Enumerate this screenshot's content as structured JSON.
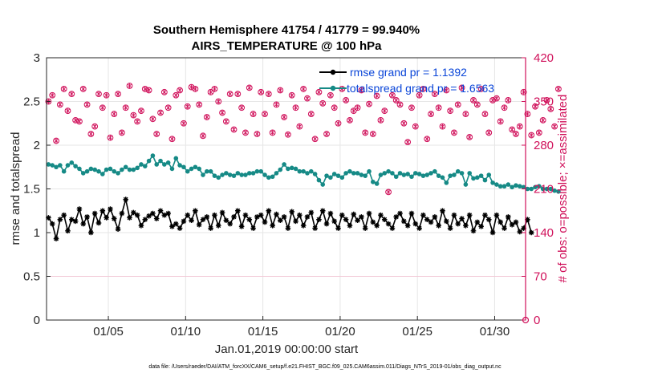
{
  "chart_data": {
    "type": "line",
    "title": "Southern Hemisphere 41754 / 41779 = 99.940%",
    "subtitle": "AIRS_TEMPERATURE @ 100 hPa",
    "xlabel": "Jan.01,2019 00:00:00 start",
    "ylabel_left": "rmse and totalspread",
    "ylabel_right": "# of obs: o=possible; ×=assimilated",
    "footer": "data file: /Users/raeder/DAI/ATM_forcXX/CAM6_setup/f.e21.FHIST_BGC.f09_025.CAM6assim.011/Diags_NTrS_2019-01/obs_diag_output.nc",
    "xlim": [
      1.0,
      32.0
    ],
    "ylim_left": [
      0,
      3
    ],
    "ylim_right": [
      0,
      420
    ],
    "x_ticks": [
      5,
      10,
      15,
      20,
      25,
      30
    ],
    "x_tick_labels": [
      "01/05",
      "01/10",
      "01/15",
      "01/20",
      "01/25",
      "01/30"
    ],
    "y_ticks_left": [
      0,
      0.5,
      1,
      1.5,
      2,
      2.5,
      3
    ],
    "y_tick_labels_left": [
      "0",
      "0.5",
      "1",
      "1.5",
      "2",
      "2.5",
      "3"
    ],
    "y_ticks_right": [
      0,
      70,
      140,
      210,
      280,
      350,
      420
    ],
    "y_tick_labels_right": [
      "0",
      "70",
      "140",
      "210",
      "280",
      "350",
      "420"
    ],
    "grid": true,
    "legend_location": "top-right",
    "colors": {
      "rmse": "#000000",
      "spread": "#168a86",
      "obs": "#d0105a",
      "legend_text": "#0a45d8"
    },
    "series": [
      {
        "name": "rmse grand pr = 1.1392",
        "axis": "left",
        "x_start": 1.125,
        "x_step": 0.25,
        "values": [
          1.17,
          1.1,
          0.93,
          1.15,
          1.2,
          1.02,
          1.15,
          1.13,
          1.27,
          1.1,
          1.18,
          1.0,
          1.22,
          1.11,
          1.25,
          1.17,
          1.27,
          1.16,
          1.04,
          1.22,
          1.38,
          1.17,
          1.23,
          1.2,
          1.08,
          1.15,
          1.19,
          1.22,
          1.16,
          1.25,
          1.2,
          1.22,
          1.07,
          1.1,
          1.05,
          1.13,
          1.2,
          1.14,
          1.25,
          1.09,
          1.15,
          1.18,
          1.05,
          1.2,
          1.08,
          1.23,
          1.14,
          1.1,
          1.18,
          1.25,
          1.07,
          1.2,
          1.15,
          1.05,
          1.18,
          1.2,
          1.12,
          1.25,
          1.08,
          1.21,
          1.14,
          1.18,
          1.05,
          1.24,
          1.13,
          1.2,
          1.08,
          1.18,
          1.23,
          1.05,
          1.15,
          1.25,
          1.1,
          1.22,
          1.13,
          1.05,
          1.2,
          1.15,
          1.08,
          1.21,
          1.14,
          1.18,
          1.05,
          1.22,
          1.12,
          1.08,
          1.2,
          1.15,
          1.1,
          1.05,
          1.18,
          1.22,
          1.13,
          1.08,
          1.22,
          1.1,
          1.05,
          1.2,
          1.15,
          1.12,
          1.18,
          1.08,
          1.25,
          1.13,
          1.05,
          1.2,
          1.1,
          1.16,
          1.08,
          1.2,
          1.02,
          1.12,
          1.07,
          1.2,
          1.15,
          1.0,
          1.2,
          1.12,
          1.05,
          1.18,
          1.09,
          1.12,
          1.01,
          1.05,
          1.15,
          1.0
        ]
      },
      {
        "name": "totalspread grand pr = 1.6563",
        "axis": "left",
        "x_start": 1.125,
        "x_step": 0.25,
        "values": [
          1.78,
          1.77,
          1.75,
          1.77,
          1.7,
          1.77,
          1.8,
          1.76,
          1.73,
          1.68,
          1.7,
          1.73,
          1.72,
          1.7,
          1.67,
          1.72,
          1.73,
          1.7,
          1.68,
          1.72,
          1.75,
          1.72,
          1.72,
          1.74,
          1.78,
          1.76,
          1.82,
          1.88,
          1.78,
          1.82,
          1.78,
          1.8,
          1.73,
          1.85,
          1.77,
          1.75,
          1.7,
          1.73,
          1.75,
          1.73,
          1.66,
          1.7,
          1.7,
          1.65,
          1.63,
          1.66,
          1.68,
          1.66,
          1.65,
          1.68,
          1.66,
          1.66,
          1.68,
          1.68,
          1.7,
          1.7,
          1.66,
          1.63,
          1.64,
          1.68,
          1.72,
          1.78,
          1.73,
          1.74,
          1.73,
          1.7,
          1.7,
          1.68,
          1.7,
          1.67,
          1.6,
          1.55,
          1.65,
          1.63,
          1.67,
          1.65,
          1.63,
          1.68,
          1.7,
          1.68,
          1.68,
          1.66,
          1.65,
          1.7,
          1.58,
          1.56,
          1.66,
          1.68,
          1.7,
          1.68,
          1.64,
          1.68,
          1.66,
          1.67,
          1.64,
          1.68,
          1.67,
          1.65,
          1.66,
          1.68,
          1.7,
          1.65,
          1.63,
          1.57,
          1.65,
          1.66,
          1.7,
          1.68,
          1.55,
          1.68,
          1.62,
          1.63,
          1.65,
          1.6,
          1.66,
          1.57,
          1.55,
          1.53,
          1.53,
          1.55,
          1.52,
          1.54,
          1.53,
          1.52,
          1.5,
          1.5,
          1.52,
          1.53,
          1.5,
          1.5,
          1.5,
          1.48,
          1.47
        ]
      },
      {
        "name": "# of obs",
        "axis": "right",
        "style": "markers",
        "x_start": 1.125,
        "x_step": 0.25,
        "values": [
          350,
          360,
          287,
          345,
          370,
          335,
          362,
          320,
          318,
          370,
          345,
          298,
          310,
          362,
          340,
          360,
          292,
          330,
          362,
          300,
          340,
          375,
          328,
          318,
          335,
          370,
          368,
          322,
          298,
          332,
          365,
          340,
          290,
          360,
          368,
          315,
          342,
          373,
          370,
          345,
          295,
          325,
          365,
          370,
          350,
          332,
          318,
          362,
          305,
          362,
          340,
          300,
          372,
          330,
          298,
          365,
          330,
          362,
          300,
          345,
          368,
          325,
          297,
          360,
          340,
          310,
          370,
          355,
          330,
          290,
          365,
          347,
          298,
          360,
          340,
          315,
          370,
          352,
          320,
          335,
          340,
          368,
          300,
          346,
          298,
          359,
          320,
          335,
          205,
          360,
          352,
          345,
          315,
          285,
          340,
          310,
          360,
          370,
          290,
          330,
          362,
          340,
          310,
          368,
          335,
          300,
          345,
          372,
          330,
          293,
          352,
          345,
          370,
          330,
          300,
          352,
          355,
          318,
          340,
          352,
          305,
          298,
          310,
          365,
          330,
          296,
          342,
          300,
          320,
          352,
          338,
          310,
          370
        ]
      }
    ]
  }
}
